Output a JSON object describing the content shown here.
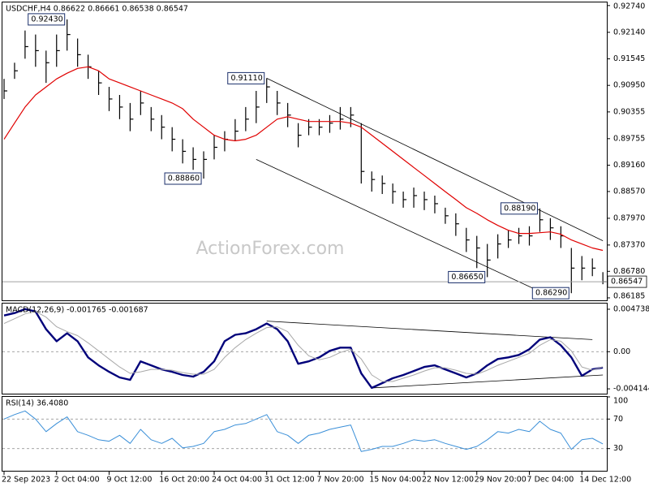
{
  "chart_data": [
    {
      "type": "ohlc",
      "title": "USDCHF,H4  0.86622 0.86661 0.86538 0.86547",
      "watermark": "ActionForex.com",
      "categories": [
        "22 Sep 2023",
        null,
        null,
        null,
        null,
        "2 Oct 04:00",
        null,
        null,
        null,
        null,
        "9 Oct 12:00",
        null,
        null,
        null,
        null,
        "16 Oct 20:00",
        null,
        null,
        null,
        null,
        "24 Oct 04:00",
        null,
        null,
        null,
        null,
        "31 Oct 12:00",
        null,
        null,
        null,
        null,
        "7 Nov 20:00",
        null,
        null,
        null,
        null,
        "15 Nov 04:00",
        null,
        null,
        null,
        null,
        "22 Nov 12:00",
        null,
        null,
        null,
        null,
        "29 Nov 20:00",
        null,
        null,
        null,
        null,
        "7 Dec 04:00",
        null,
        null,
        null,
        null,
        "14 Dec 12:00",
        null,
        null
      ],
      "high": [
        0.91096,
        0.91458,
        0.9218,
        0.9209,
        0.91729,
        0.9209,
        0.9243,
        0.92,
        0.91638,
        0.91277,
        0.90916,
        0.90735,
        0.90555,
        0.90826,
        0.90464,
        0.90284,
        0.90013,
        0.89742,
        0.89561,
        0.89471,
        0.89832,
        0.89923,
        0.90193,
        0.90464,
        0.90826,
        0.9111,
        0.90826,
        0.90555,
        0.90103,
        0.90193,
        0.90193,
        0.90284,
        0.90464,
        0.90464,
        0.90103,
        0.8902,
        0.88929,
        0.88749,
        0.88568,
        0.88658,
        0.88568,
        0.88478,
        0.88207,
        0.8808,
        0.87755,
        0.87575,
        0.87394,
        0.87611,
        0.87701,
        0.87755,
        0.87791,
        0.8819,
        0.87972,
        0.87791,
        0.87304,
        0.87123,
        0.87069,
        0.86762
      ],
      "low": [
        0.90645,
        0.91096,
        0.91548,
        0.91367,
        0.91006,
        0.91367,
        0.91729,
        0.91367,
        0.91096,
        0.90735,
        0.90374,
        0.90193,
        0.89923,
        0.90284,
        0.89923,
        0.89742,
        0.89471,
        0.892,
        0.89056,
        0.8886,
        0.8929,
        0.89471,
        0.89706,
        0.89923,
        0.90103,
        0.90555,
        0.90284,
        0.90013,
        0.89561,
        0.89832,
        0.89832,
        0.89886,
        0.89959,
        0.90013,
        0.88749,
        0.88568,
        0.88514,
        0.88297,
        0.88207,
        0.88207,
        0.88153,
        0.8808,
        0.87846,
        0.87575,
        0.87214,
        0.86852,
        0.8665,
        0.87069,
        0.87304,
        0.87394,
        0.87358,
        0.87665,
        0.87484,
        0.87304,
        0.8629,
        0.86581,
        0.86672,
        0.86491
      ],
      "close": [
        0.90826,
        0.91277,
        0.91819,
        0.91729,
        0.91458,
        0.91729,
        0.9209,
        0.91638,
        0.91367,
        0.91006,
        0.90645,
        0.90464,
        0.90193,
        0.90555,
        0.90193,
        0.90013,
        0.89742,
        0.89471,
        0.8929,
        0.8929,
        0.89561,
        0.89742,
        0.89923,
        0.90193,
        0.90464,
        0.90916,
        0.90555,
        0.90284,
        0.89832,
        0.90013,
        0.90013,
        0.90103,
        0.90193,
        0.90284,
        0.8902,
        0.88839,
        0.88749,
        0.88568,
        0.88388,
        0.88478,
        0.88388,
        0.88297,
        0.88026,
        0.87846,
        0.87484,
        0.87304,
        0.87033,
        0.87394,
        0.87484,
        0.87575,
        0.87575,
        0.87936,
        0.87755,
        0.87575,
        0.86852,
        0.86852,
        0.86852,
        0.86547
      ],
      "color": "#000000",
      "ma": {
        "color": "#e00000",
        "values": [
          0.89742,
          0.90103,
          0.90464,
          0.90735,
          0.90916,
          0.91096,
          0.91223,
          0.91331,
          0.91367,
          0.91277,
          0.91096,
          0.91006,
          0.90916,
          0.90826,
          0.90735,
          0.90645,
          0.90555,
          0.90428,
          0.90193,
          0.90013,
          0.89832,
          0.89742,
          0.89706,
          0.89742,
          0.89832,
          0.90013,
          0.90193,
          0.90248,
          0.90193,
          0.90139,
          0.90139,
          0.90139,
          0.90139,
          0.90103,
          0.90013,
          0.89832,
          0.89652,
          0.89471,
          0.8929,
          0.8911,
          0.88929,
          0.88749,
          0.88568,
          0.88388,
          0.88207,
          0.8808,
          0.87936,
          0.8781,
          0.87701,
          0.87629,
          0.87629,
          0.87647,
          0.87665,
          0.87611,
          0.87484,
          0.87394,
          0.87304,
          0.8725
        ]
      },
      "annotations": [
        {
          "x": 6,
          "value": 0.9243,
          "label": "0.92430"
        },
        {
          "x": 25,
          "value": 0.9111,
          "label": "0.91110"
        },
        {
          "x": 19,
          "value": 0.8886,
          "label": "0.88860"
        },
        {
          "x": 51,
          "value": 0.8819,
          "label": "0.88190"
        },
        {
          "x": 46,
          "value": 0.8665,
          "label": "0.86650"
        },
        {
          "x": 54,
          "value": 0.8629,
          "label": "0.86290"
        }
      ],
      "trendlines": [
        {
          "x": [
            25,
            57
          ],
          "y": [
            0.9111,
            0.87466
          ]
        },
        {
          "x": [
            24,
            51
          ],
          "y": [
            0.8929,
            0.86328
          ]
        }
      ],
      "ylim": [
        0.8613,
        0.9281
      ],
      "yticks": [
        {
          "value": 0.9274,
          "label": "0.92740"
        },
        {
          "value": 0.9214,
          "label": "0.92140"
        },
        0.91545,
        {
          "value": 0.9095,
          "label": "0.90950"
        },
        0.90355,
        0.89755,
        {
          "value": 0.8916,
          "label": "0.89160"
        },
        {
          "value": 0.8857,
          "label": "0.88570"
        },
        {
          "value": 0.8797,
          "label": "0.87970"
        },
        {
          "value": 0.8737,
          "label": "0.87370"
        },
        {
          "value": 0.8678,
          "label": "0.86780"
        },
        0.86185
      ],
      "grid": false
    },
    {
      "type": "line",
      "title": "MACD(12,26,9) -0.001765 -0.001687",
      "series": [
        {
          "color": "#00007a",
          "values": [
            0.00404,
            0.00431,
            0.00475,
            0.00449,
            0.00251,
            0.00117,
            0.00206,
            0.00117,
            -0.00063,
            -0.00152,
            -0.00224,
            -0.00287,
            -0.00314,
            -0.00108,
            -0.00152,
            -0.00197,
            -0.00224,
            -0.0026,
            -0.00278,
            -0.00224,
            -0.00108,
            0.00117,
            0.00188,
            0.00206,
            0.00251,
            0.00314,
            0.00251,
            0.00117,
            -0.00135,
            -0.00108,
            -0.00063,
            9e-05,
            0.00045,
            0.00045,
            -0.00242,
            -0.00404,
            -0.0035,
            -0.00296,
            -0.0026,
            -0.00215,
            -0.0017,
            -0.00152,
            -0.00197,
            -0.00242,
            -0.00287,
            -0.00242,
            -0.00152,
            -0.00081,
            -0.00063,
            -0.00036,
            0.00027,
            0.00135,
            0.00161,
            0.00072,
            -0.00063,
            -0.00269,
            -0.00197,
            -0.001765
          ]
        },
        {
          "color": "#a8a8a8",
          "values": [
            0.00314,
            0.00368,
            0.00422,
            0.00449,
            0.00386,
            0.00278,
            0.00224,
            0.00179,
            0.00099,
            9e-05,
            -0.00081,
            -0.0017,
            -0.00242,
            -0.00224,
            -0.00197,
            -0.00197,
            -0.00206,
            -0.00233,
            -0.00251,
            -0.00251,
            -0.00197,
            -0.00063,
            0.00045,
            0.00135,
            0.00206,
            0.00269,
            0.00278,
            0.00224,
            0.00072,
            -0.00045,
            -0.0009,
            -0.00063,
            -9e-05,
            0.00027,
            -0.00081,
            -0.0026,
            -0.00332,
            -0.00332,
            -0.00296,
            -0.0026,
            -0.00215,
            -0.00179,
            -0.00179,
            -0.00206,
            -0.00242,
            -0.00251,
            -0.00206,
            -0.00152,
            -0.00108,
            -0.00063,
            -0.00018,
            0.00072,
            0.00135,
            0.00117,
            9e-05,
            -0.0017,
            -0.00206,
            -0.001687
          ]
        }
      ],
      "trendlines": [
        {
          "x": [
            25,
            56
          ],
          "y": [
            0.00341,
            0.00135
          ]
        },
        {
          "x": [
            35,
            57
          ],
          "y": [
            -0.00404,
            -0.0026
          ]
        }
      ],
      "ylim": [
        -0.00468,
        0.00537
      ],
      "yticks": [
        0.004738,
        {
          "value": 0,
          "label": "0.00"
        },
        -0.004144
      ],
      "grid": true
    },
    {
      "type": "line",
      "title": "RSI(14) 36.4080",
      "series": [
        {
          "color": "#3a8fd8",
          "values": [
            70,
            76,
            81,
            70,
            53,
            64,
            73,
            53,
            48,
            42,
            40,
            48,
            37,
            56,
            42,
            37,
            44,
            31,
            33,
            37,
            53,
            56,
            62,
            64,
            70,
            76,
            53,
            48,
            37,
            48,
            51,
            56,
            59,
            62,
            26,
            29,
            33,
            33,
            37,
            42,
            40,
            42,
            37,
            33,
            29,
            33,
            42,
            53,
            51,
            56,
            53,
            67,
            56,
            51,
            29,
            42,
            44,
            36.408
          ]
        }
      ],
      "ylim": [
        0,
        100
      ],
      "yticks": [
        100,
        70,
        30
      ],
      "grid": true
    }
  ]
}
